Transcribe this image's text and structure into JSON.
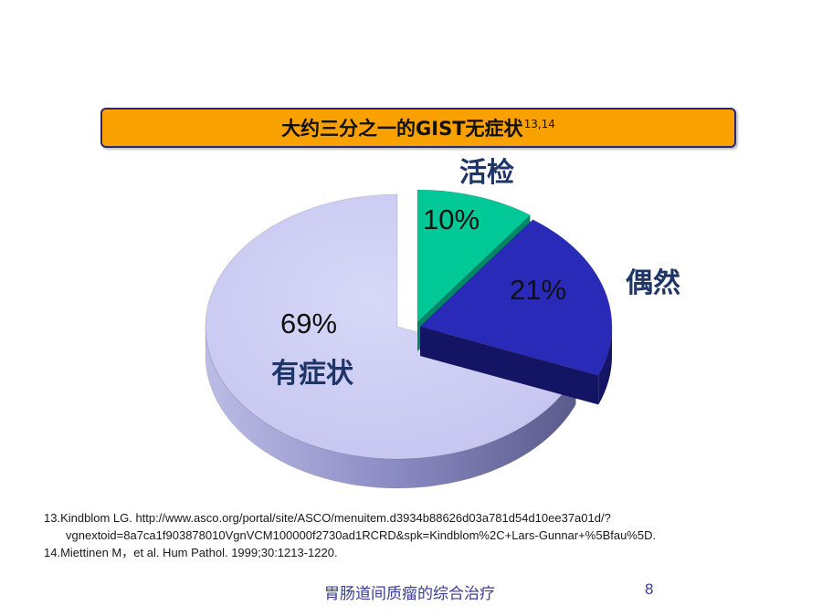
{
  "title": {
    "text": "大约三分之一的GIST无症状",
    "superscript": "13,14"
  },
  "chart_data": {
    "type": "pie",
    "title": "大约三分之一的GIST无症状",
    "slices": [
      {
        "name": "活检",
        "value": 10,
        "label": "10%",
        "color": "#00c896"
      },
      {
        "name": "偶然",
        "value": 21,
        "label": "21%",
        "color": "#2a2ab8"
      },
      {
        "name": "有症状",
        "value": 69,
        "label": "69%",
        "color": "#c8c8f4"
      }
    ],
    "legend": "labels-on-chart",
    "style": "3d-exploded"
  },
  "references": [
    "13.Kindblom LG. http://www.asco.org/portal/site/ASCO/menuitem.d3934b88626d03a781d54d10ee37a01d/?",
    "vgnextoid=8a7ca1f903878010VgnVCM100000f2730ad1RCRD&spk=Kindblom%2C+Lars-Gunnar+%5Bfau%5D.",
    "14.Miettinen M，et al. Hum Pathol. 1999;30:1213-1220."
  ],
  "footer": {
    "text": "胃肠道间质瘤的综合治疗",
    "page_number": "8"
  }
}
